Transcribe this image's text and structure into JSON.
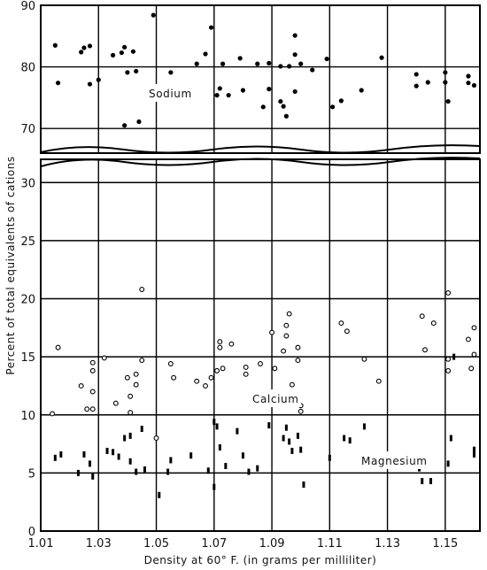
{
  "chart_data": {
    "type": "scatter",
    "xlabel": "Density at 60° F.  (in grams per milliliter)",
    "ylabel": "Percent of total equivalents of cations",
    "x_ticks": [
      "1.01",
      "1.03",
      "1.05",
      "1.07",
      "1.09",
      "1.11",
      "1.13",
      "1.15"
    ],
    "upper_ticks": [
      "90",
      "80",
      "70"
    ],
    "lower_ticks": [
      "30",
      "25",
      "20",
      "15",
      "10",
      "5",
      "0"
    ],
    "xlim": [
      1.01,
      1.162
    ],
    "ylim_lower": [
      0,
      32
    ],
    "ylim_upper": [
      66,
      90
    ],
    "axis_break": "between 32 and 66 percent",
    "grid": true,
    "series": [
      {
        "name": "Sodium",
        "marker": "filled-dot",
        "points": [
          [
            1.015,
            83.5
          ],
          [
            1.016,
            77.4
          ],
          [
            1.024,
            82.4
          ],
          [
            1.025,
            83.1
          ],
          [
            1.027,
            83.4
          ],
          [
            1.027,
            77.2
          ],
          [
            1.03,
            77.9
          ],
          [
            1.035,
            81.9
          ],
          [
            1.038,
            82.3
          ],
          [
            1.039,
            83.2
          ],
          [
            1.04,
            79.1
          ],
          [
            1.039,
            70.5
          ],
          [
            1.042,
            82.5
          ],
          [
            1.043,
            79.3
          ],
          [
            1.044,
            71.1
          ],
          [
            1.049,
            88.4
          ],
          [
            1.055,
            79.1
          ],
          [
            1.064,
            80.5
          ],
          [
            1.067,
            82.1
          ],
          [
            1.069,
            86.4
          ],
          [
            1.071,
            75.4
          ],
          [
            1.072,
            76.5
          ],
          [
            1.073,
            80.5
          ],
          [
            1.075,
            75.4
          ],
          [
            1.079,
            81.4
          ],
          [
            1.08,
            76.2
          ],
          [
            1.085,
            80.5
          ],
          [
            1.087,
            73.5
          ],
          [
            1.089,
            80.6
          ],
          [
            1.089,
            76.4
          ],
          [
            1.093,
            80.1
          ],
          [
            1.093,
            74.4
          ],
          [
            1.094,
            73.6
          ],
          [
            1.095,
            72.0
          ],
          [
            1.096,
            80.1
          ],
          [
            1.098,
            85.1
          ],
          [
            1.098,
            82.0
          ],
          [
            1.098,
            76.0
          ],
          [
            1.1,
            80.5
          ],
          [
            1.104,
            79.5
          ],
          [
            1.109,
            81.3
          ],
          [
            1.111,
            73.5
          ],
          [
            1.114,
            74.5
          ],
          [
            1.121,
            76.2
          ],
          [
            1.128,
            81.5
          ],
          [
            1.14,
            78.8
          ],
          [
            1.14,
            76.9
          ],
          [
            1.144,
            77.5
          ],
          [
            1.15,
            79.1
          ],
          [
            1.15,
            77.5
          ],
          [
            1.151,
            74.4
          ],
          [
            1.158,
            78.5
          ],
          [
            1.158,
            77.4
          ],
          [
            1.16,
            77.0
          ]
        ]
      },
      {
        "name": "Calcium",
        "marker": "open-circle",
        "points": [
          [
            1.014,
            10.1
          ],
          [
            1.016,
            15.8
          ],
          [
            1.024,
            12.5
          ],
          [
            1.026,
            10.5
          ],
          [
            1.028,
            14.5
          ],
          [
            1.028,
            13.8
          ],
          [
            1.028,
            12.0
          ],
          [
            1.028,
            10.5
          ],
          [
            1.032,
            14.9
          ],
          [
            1.036,
            11.0
          ],
          [
            1.04,
            13.2
          ],
          [
            1.041,
            11.6
          ],
          [
            1.041,
            10.2
          ],
          [
            1.043,
            12.6
          ],
          [
            1.043,
            13.5
          ],
          [
            1.045,
            14.7
          ],
          [
            1.045,
            20.8
          ],
          [
            1.05,
            8.0
          ],
          [
            1.055,
            14.4
          ],
          [
            1.056,
            13.2
          ],
          [
            1.064,
            12.9
          ],
          [
            1.067,
            12.5
          ],
          [
            1.069,
            13.2
          ],
          [
            1.071,
            13.8
          ],
          [
            1.072,
            16.3
          ],
          [
            1.072,
            15.8
          ],
          [
            1.073,
            14.0
          ],
          [
            1.076,
            16.1
          ],
          [
            1.081,
            13.5
          ],
          [
            1.081,
            14.1
          ],
          [
            1.086,
            14.4
          ],
          [
            1.09,
            17.1
          ],
          [
            1.091,
            14.0
          ],
          [
            1.094,
            15.5
          ],
          [
            1.095,
            16.8
          ],
          [
            1.095,
            17.7
          ],
          [
            1.096,
            18.7
          ],
          [
            1.097,
            12.6
          ],
          [
            1.099,
            14.7
          ],
          [
            1.099,
            15.8
          ],
          [
            1.1,
            10.8
          ],
          [
            1.1,
            10.3
          ],
          [
            1.114,
            17.9
          ],
          [
            1.116,
            17.2
          ],
          [
            1.122,
            14.8
          ],
          [
            1.127,
            12.9
          ],
          [
            1.142,
            18.5
          ],
          [
            1.143,
            15.6
          ],
          [
            1.146,
            17.9
          ],
          [
            1.151,
            20.5
          ],
          [
            1.151,
            13.8
          ],
          [
            1.151,
            14.8
          ],
          [
            1.158,
            16.5
          ],
          [
            1.159,
            14.0
          ],
          [
            1.16,
            17.5
          ],
          [
            1.16,
            15.2
          ]
        ]
      },
      {
        "name": "Magnesium",
        "marker": "filled-bar",
        "points": [
          [
            1.015,
            6.3
          ],
          [
            1.017,
            6.6
          ],
          [
            1.023,
            5.0
          ],
          [
            1.025,
            6.6
          ],
          [
            1.027,
            5.8
          ],
          [
            1.028,
            4.7
          ],
          [
            1.033,
            6.9
          ],
          [
            1.035,
            6.8
          ],
          [
            1.037,
            6.4
          ],
          [
            1.039,
            8.0
          ],
          [
            1.041,
            8.2
          ],
          [
            1.041,
            6.0
          ],
          [
            1.043,
            5.1
          ],
          [
            1.045,
            8.8
          ],
          [
            1.046,
            5.3
          ],
          [
            1.051,
            3.1
          ],
          [
            1.054,
            5.1
          ],
          [
            1.055,
            6.1
          ],
          [
            1.062,
            6.5
          ],
          [
            1.068,
            5.2
          ],
          [
            1.07,
            9.4
          ],
          [
            1.07,
            3.8
          ],
          [
            1.071,
            9.0
          ],
          [
            1.072,
            7.2
          ],
          [
            1.074,
            5.6
          ],
          [
            1.078,
            8.6
          ],
          [
            1.08,
            6.5
          ],
          [
            1.082,
            5.1
          ],
          [
            1.085,
            5.4
          ],
          [
            1.089,
            9.1
          ],
          [
            1.094,
            8.0
          ],
          [
            1.095,
            8.9
          ],
          [
            1.096,
            7.7
          ],
          [
            1.097,
            6.9
          ],
          [
            1.099,
            8.2
          ],
          [
            1.1,
            7.0
          ],
          [
            1.101,
            4.0
          ],
          [
            1.11,
            6.3
          ],
          [
            1.115,
            8.0
          ],
          [
            1.117,
            7.8
          ],
          [
            1.122,
            9.0
          ],
          [
            1.141,
            5.4
          ],
          [
            1.142,
            4.3
          ],
          [
            1.145,
            4.3
          ],
          [
            1.151,
            5.8
          ],
          [
            1.152,
            8.0
          ],
          [
            1.153,
            15.0
          ],
          [
            1.16,
            7.0
          ],
          [
            1.16,
            6.6
          ]
        ]
      }
    ]
  }
}
